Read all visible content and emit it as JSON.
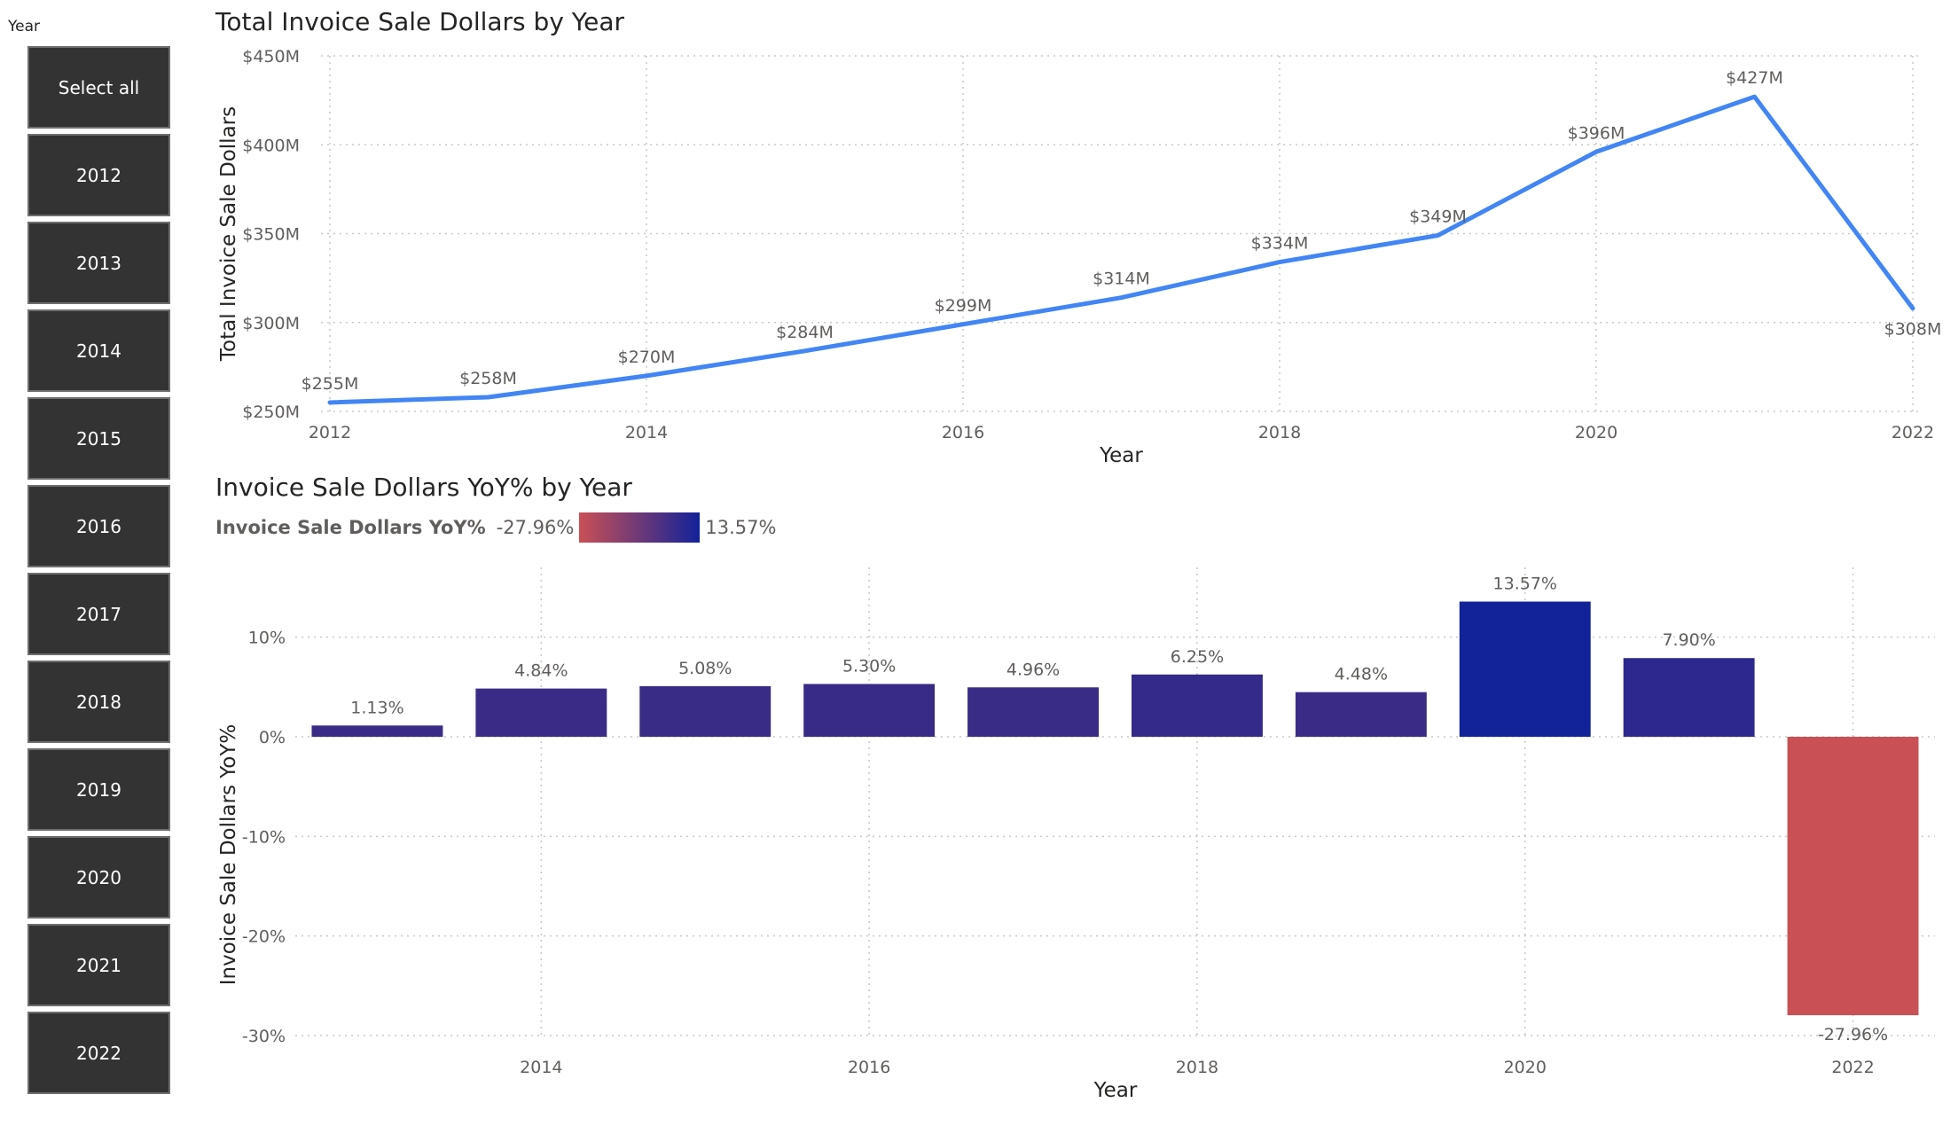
{
  "slicer": {
    "title": "Year",
    "items": [
      "Select all",
      "2012",
      "2013",
      "2014",
      "2015",
      "2016",
      "2017",
      "2018",
      "2019",
      "2020",
      "2021",
      "2022"
    ]
  },
  "colors": {
    "line": "#4285F4",
    "bar_low": "#C95055",
    "bar_high": "#122299",
    "bar_mid": "#3A2C86",
    "slicer_bg": "#333333"
  },
  "chart_data": [
    {
      "type": "line",
      "title": "Total Invoice Sale Dollars by Year",
      "xlabel": "Year",
      "ylabel": "Total Invoice Sale Dollars",
      "x": [
        2012,
        2013,
        2014,
        2015,
        2016,
        2017,
        2018,
        2019,
        2020,
        2021,
        2022
      ],
      "values": [
        255,
        258,
        270,
        284,
        299,
        314,
        334,
        349,
        396,
        427,
        308
      ],
      "data_labels": [
        "$255M",
        "$258M",
        "$270M",
        "$284M",
        "$299M",
        "$314M",
        "$334M",
        "$349M",
        "$396M",
        "$427M",
        "$308M"
      ],
      "ylim": [
        250,
        450
      ],
      "yticks": [
        250,
        300,
        350,
        400,
        450
      ],
      "ytick_labels": [
        "$250M",
        "$300M",
        "$350M",
        "$400M",
        "$450M"
      ],
      "xticks": [
        2012,
        2014,
        2016,
        2018,
        2020,
        2022
      ],
      "xtick_labels": [
        "2012",
        "2014",
        "2016",
        "2018",
        "2020",
        "2022"
      ],
      "grid": true
    },
    {
      "type": "bar",
      "title": "Invoice Sale Dollars YoY% by Year",
      "xlabel": "Year",
      "ylabel": "Invoice Sale Dollars YoY%",
      "categories": [
        2013,
        2014,
        2015,
        2016,
        2017,
        2018,
        2019,
        2020,
        2021,
        2022
      ],
      "values": [
        1.13,
        4.84,
        5.08,
        5.3,
        4.96,
        6.25,
        4.48,
        13.57,
        7.9,
        -27.96
      ],
      "data_labels": [
        "1.13%",
        "4.84%",
        "5.08%",
        "5.30%",
        "4.96%",
        "6.25%",
        "4.48%",
        "13.57%",
        "7.90%",
        "-27.96%"
      ],
      "ylim": [
        -30,
        17
      ],
      "yticks": [
        -30,
        -20,
        -10,
        0,
        10
      ],
      "ytick_labels": [
        "-30%",
        "-20%",
        "-10%",
        "0%",
        "10%"
      ],
      "xticks": [
        2014,
        2016,
        2018,
        2020,
        2022
      ],
      "xtick_labels": [
        "2014",
        "2016",
        "2018",
        "2020",
        "2022"
      ],
      "grid": true,
      "legend": {
        "name": "Invoice Sale Dollars YoY%",
        "min_label": "-27.96%",
        "max_label": "13.57%"
      }
    }
  ]
}
